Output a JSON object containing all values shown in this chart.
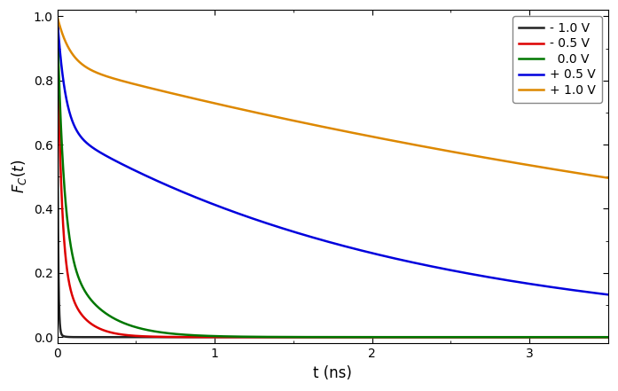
{
  "title": "",
  "xlabel": "t (ns)",
  "ylabel": "$F_C(t)$",
  "xlim": [
    0,
    3.5
  ],
  "ylim": [
    -0.02,
    1.02
  ],
  "yticks": [
    0.0,
    0.2,
    0.4,
    0.6,
    0.8,
    1.0
  ],
  "xticks": [
    0,
    1,
    2,
    3
  ],
  "curves": [
    {
      "label": "- 1.0 V",
      "color": "#222222",
      "tau1": 0.005,
      "A1": 0.98,
      "tau2": 0.02,
      "A2": 0.02
    },
    {
      "label": "- 0.5 V",
      "color": "#dd0000",
      "tau1": 0.025,
      "A1": 0.75,
      "tau2": 0.12,
      "A2": 0.25
    },
    {
      "label": "  0.0 V",
      "color": "#007700",
      "tau1": 0.04,
      "A1": 0.7,
      "tau2": 0.22,
      "A2": 0.3
    },
    {
      "label": "+ 0.5 V",
      "color": "#0000dd",
      "tau1": 0.05,
      "A1": 0.35,
      "tau2": 2.2,
      "A2": 0.65
    },
    {
      "label": "+ 1.0 V",
      "color": "#dd8800",
      "tau1": 0.08,
      "A1": 0.15,
      "tau2": 6.5,
      "A2": 0.85
    }
  ],
  "background_color": "#ffffff",
  "legend_fontsize": 10,
  "axis_fontsize": 12,
  "tick_fontsize": 10,
  "linewidth": 1.8
}
